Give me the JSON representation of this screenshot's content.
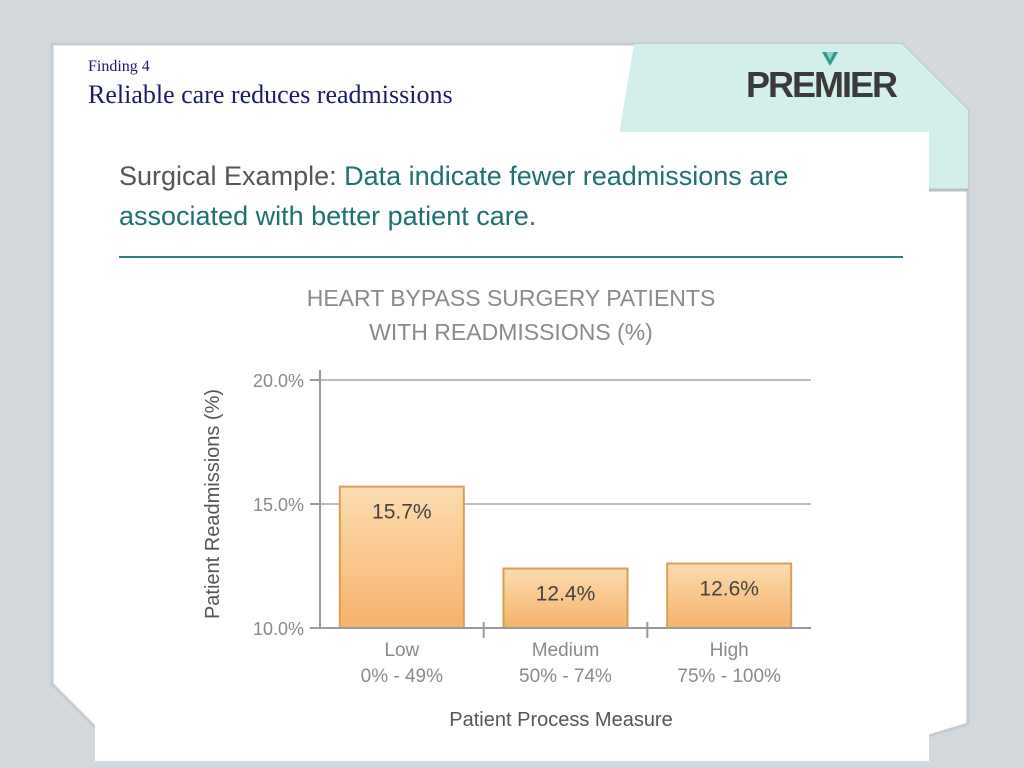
{
  "slide": {
    "finding_label": "Finding 4",
    "title": "Reliable care reduces readmissions",
    "logo_text": "PREMIER"
  },
  "panel": {
    "headline_lead": "Surgical Example:",
    "headline_body": "Data indicate fewer readmissions are associated with better patient care."
  },
  "colors": {
    "title": "#1a1a6e",
    "accent_teal": "#1f6f73",
    "bar_top": "#fbdcb0",
    "bar_bottom": "#f5b26a",
    "bar_border": "#d8a055",
    "mint_panel": "#d2efec"
  },
  "chart_data": {
    "type": "bar",
    "title_lines": [
      "HEART BYPASS SURGERY PATIENTS",
      "WITH READMISSIONS (%)"
    ],
    "xlabel": "Patient Process Measure",
    "ylabel": "Patient Readmissions (%)",
    "categories": [
      {
        "name": "Low",
        "range": "0% - 49%"
      },
      {
        "name": "Medium",
        "range": "50% - 74%"
      },
      {
        "name": "High",
        "range": "75% - 100%"
      }
    ],
    "values": [
      15.7,
      12.4,
      12.6
    ],
    "value_labels": [
      "15.7%",
      "12.4%",
      "12.6%"
    ],
    "ylim": [
      10,
      20
    ],
    "yticks": [
      10,
      15,
      20
    ],
    "ytick_labels": [
      "10.0%",
      "15.0%",
      "20.0%"
    ],
    "grid": true
  }
}
